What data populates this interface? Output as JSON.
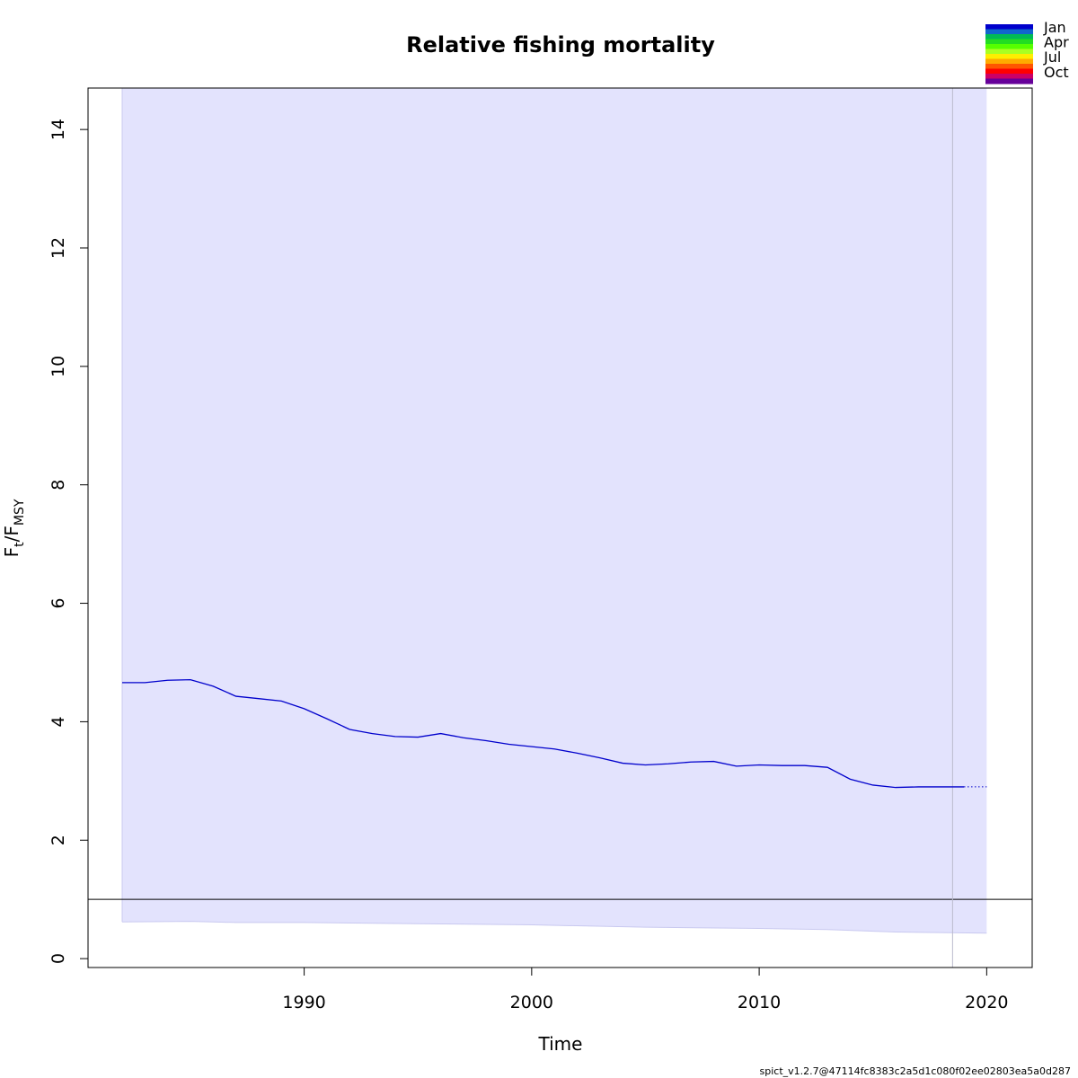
{
  "chart_data": {
    "type": "line",
    "title": "Relative fishing mortality",
    "xlabel": "Time",
    "ylabel": {
      "main": "F",
      "sub1": "t",
      "sep": "/F",
      "sub2": "MSY"
    },
    "xlim": [
      1980.5,
      2022.0
    ],
    "ylim": [
      -0.15,
      14.7
    ],
    "x_ticks": [
      1990,
      2000,
      2010,
      2020
    ],
    "y_ticks": [
      0,
      2,
      4,
      6,
      8,
      10,
      12,
      14
    ],
    "grid": false,
    "reference_line": {
      "y": 1
    },
    "data_end_line": {
      "x": 2018.5
    },
    "confidence_band": {
      "x": [
        1982.0,
        1985.0,
        1987.0,
        1990.0,
        1995.0,
        2000.0,
        2005.0,
        2010.0,
        2013.0,
        2016.0,
        2020.0
      ],
      "lower": [
        0.62,
        0.63,
        0.61,
        0.61,
        0.59,
        0.57,
        0.53,
        0.51,
        0.49,
        0.45,
        0.43
      ],
      "upper": [
        14.7,
        14.7,
        14.7,
        14.7,
        14.7,
        14.7,
        14.7,
        14.7,
        14.7,
        14.7,
        14.7
      ]
    },
    "series": [
      {
        "style": "solid",
        "x": [
          1982.0,
          1983.0,
          1984.0,
          1985.0,
          1986.0,
          1987.0,
          1988.0,
          1989.0,
          1990.0,
          1991.0,
          1992.0,
          1993.0,
          1994.0,
          1995.0,
          1996.0,
          1997.0,
          1998.0,
          1999.0,
          2000.0,
          2001.0,
          2002.0,
          2003.0,
          2004.0,
          2005.0,
          2006.0,
          2007.0,
          2008.0,
          2009.0,
          2010.0,
          2011.0,
          2012.0,
          2013.0,
          2014.0,
          2015.0,
          2016.0,
          2017.0,
          2018.0,
          2019.0
        ],
        "y": [
          4.66,
          4.66,
          4.7,
          4.71,
          4.6,
          4.43,
          4.39,
          4.35,
          4.22,
          4.05,
          3.87,
          3.8,
          3.75,
          3.74,
          3.8,
          3.73,
          3.68,
          3.62,
          3.58,
          3.54,
          3.47,
          3.39,
          3.3,
          3.27,
          3.29,
          3.32,
          3.33,
          3.25,
          3.27,
          3.26,
          3.26,
          3.23,
          3.03,
          2.93,
          2.89,
          2.9,
          2.9,
          2.9
        ]
      },
      {
        "style": "dotted",
        "x": [
          2019.0,
          2020.0
        ],
        "y": [
          2.9,
          2.9
        ]
      }
    ],
    "legend": {
      "placement": "top-right",
      "entries": [
        "Jan",
        "Apr",
        "Jul",
        "Oct"
      ],
      "colors": [
        "#0000CC",
        "#1166CC",
        "#00BB55",
        "#22DD22",
        "#55FF00",
        "#AAFF22",
        "#FFEE00",
        "#FFAA00",
        "#FF5500",
        "#FF0000",
        "#CC0066",
        "#660099"
      ]
    },
    "colors": {
      "band": "#E3E3FD",
      "band_edge": "#C9C9F0",
      "line": "#0000CC",
      "ref_line": "#000000",
      "vline": "#BBBBCC"
    }
  },
  "footer": "spict_v1.2.7@47114fc8383c2a5d1c080f02ee02803ea5a0d287"
}
